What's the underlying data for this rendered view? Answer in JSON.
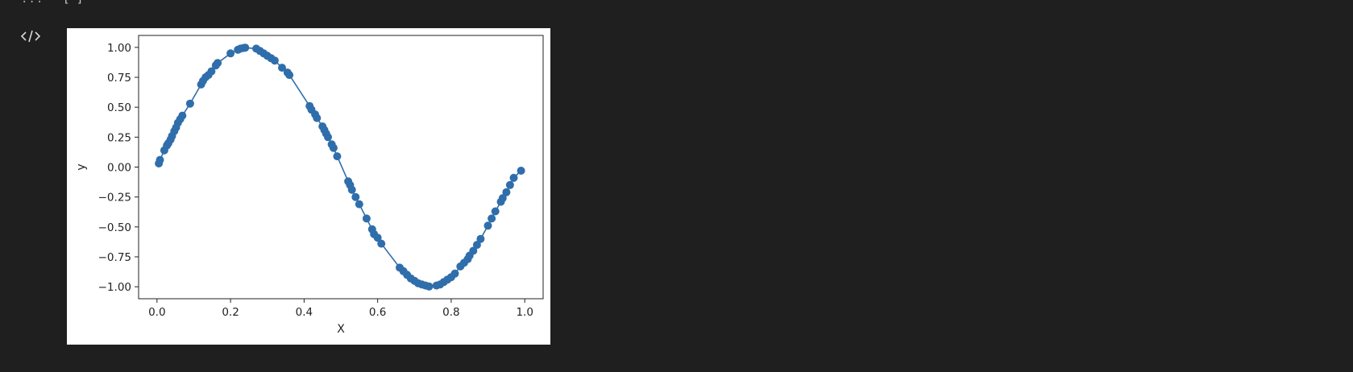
{
  "cell_prev": {
    "ellipsis": "...",
    "brackets": "[ ]"
  },
  "output_toolbar": {
    "icon": "code-icon"
  },
  "colors": {
    "background": "#1f1f1f",
    "plot_background": "#ffffff",
    "series": "#2f6eab"
  },
  "chart_data": {
    "type": "line",
    "markers": true,
    "xlabel": "X",
    "ylabel": "y",
    "xlim": [
      -0.05,
      1.05
    ],
    "ylim": [
      -1.1,
      1.1
    ],
    "x_ticks": [
      0.0,
      0.2,
      0.4,
      0.6,
      0.8,
      1.0
    ],
    "x_tick_labels": [
      "0.0",
      "0.2",
      "0.4",
      "0.6",
      "0.8",
      "1.0"
    ],
    "y_ticks": [
      1.0,
      0.75,
      0.5,
      0.25,
      0.0,
      -0.25,
      -0.5,
      -0.75,
      -1.0
    ],
    "y_tick_labels": [
      "1.00",
      "0.75",
      "0.50",
      "0.25",
      "0.00",
      "−0.25",
      "−0.50",
      "−0.75",
      "−1.00"
    ],
    "grid": false,
    "series": [
      {
        "x": [
          0.005,
          0.008,
          0.02,
          0.027,
          0.031,
          0.037,
          0.041,
          0.047,
          0.052,
          0.057,
          0.063,
          0.069,
          0.09,
          0.12,
          0.125,
          0.132,
          0.14,
          0.148,
          0.16,
          0.165,
          0.2,
          0.22,
          0.227,
          0.235,
          0.24,
          0.27,
          0.28,
          0.29,
          0.3,
          0.31,
          0.32,
          0.34,
          0.355,
          0.36,
          0.415,
          0.42,
          0.43,
          0.435,
          0.45,
          0.455,
          0.46,
          0.465,
          0.475,
          0.48,
          0.49,
          0.52,
          0.525,
          0.53,
          0.54,
          0.55,
          0.57,
          0.585,
          0.59,
          0.6,
          0.61,
          0.66,
          0.67,
          0.68,
          0.69,
          0.7,
          0.71,
          0.72,
          0.73,
          0.74,
          0.76,
          0.77,
          0.78,
          0.79,
          0.8,
          0.81,
          0.825,
          0.835,
          0.845,
          0.85,
          0.86,
          0.87,
          0.88,
          0.9,
          0.91,
          0.92,
          0.935,
          0.94,
          0.95,
          0.96,
          0.97,
          0.99
        ],
        "y": [
          0.03,
          0.06,
          0.14,
          0.18,
          0.2,
          0.23,
          0.26,
          0.3,
          0.33,
          0.37,
          0.4,
          0.43,
          0.53,
          0.69,
          0.72,
          0.75,
          0.77,
          0.8,
          0.85,
          0.87,
          0.95,
          0.98,
          0.99,
          0.995,
          0.998,
          0.99,
          0.97,
          0.95,
          0.93,
          0.91,
          0.89,
          0.83,
          0.79,
          0.77,
          0.51,
          0.48,
          0.44,
          0.41,
          0.34,
          0.31,
          0.28,
          0.25,
          0.19,
          0.16,
          0.09,
          -0.12,
          -0.15,
          -0.19,
          -0.25,
          -0.31,
          -0.43,
          -0.52,
          -0.56,
          -0.59,
          -0.64,
          -0.84,
          -0.87,
          -0.9,
          -0.93,
          -0.95,
          -0.97,
          -0.98,
          -0.99,
          -0.998,
          -0.99,
          -0.98,
          -0.96,
          -0.94,
          -0.92,
          -0.89,
          -0.83,
          -0.8,
          -0.77,
          -0.74,
          -0.7,
          -0.65,
          -0.6,
          -0.49,
          -0.43,
          -0.37,
          -0.29,
          -0.26,
          -0.21,
          -0.15,
          -0.09,
          -0.03
        ]
      }
    ]
  }
}
